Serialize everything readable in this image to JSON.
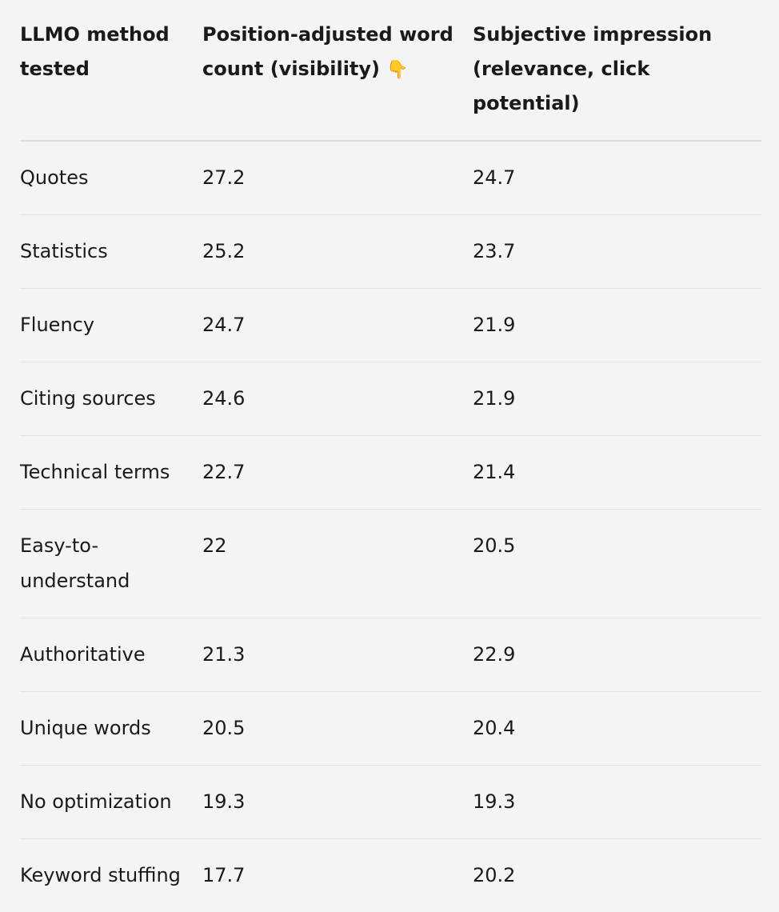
{
  "table": {
    "headers": [
      "LLMO method tested",
      "Position-adjusted word count (visibility)",
      "Subjective impression (relevance, click potential)"
    ],
    "header_icon": "👇",
    "rows": [
      {
        "method": "Quotes",
        "visibility": "27.2",
        "impression": "24.7"
      },
      {
        "method": "Statistics",
        "visibility": "25.2",
        "impression": "23.7"
      },
      {
        "method": "Fluency",
        "visibility": "24.7",
        "impression": "21.9"
      },
      {
        "method": "Citing sources",
        "visibility": "24.6",
        "impression": "21.9"
      },
      {
        "method": "Technical terms",
        "visibility": "22.7",
        "impression": "21.4"
      },
      {
        "method": "Easy-to-understand",
        "visibility": "22",
        "impression": "20.5"
      },
      {
        "method": "Authoritative",
        "visibility": "21.3",
        "impression": "22.9"
      },
      {
        "method": "Unique words",
        "visibility": "20.5",
        "impression": "20.4"
      },
      {
        "method": "No optimization",
        "visibility": "19.3",
        "impression": "19.3"
      },
      {
        "method": "Keyword stuffing",
        "visibility": "17.7",
        "impression": "20.2"
      }
    ]
  }
}
